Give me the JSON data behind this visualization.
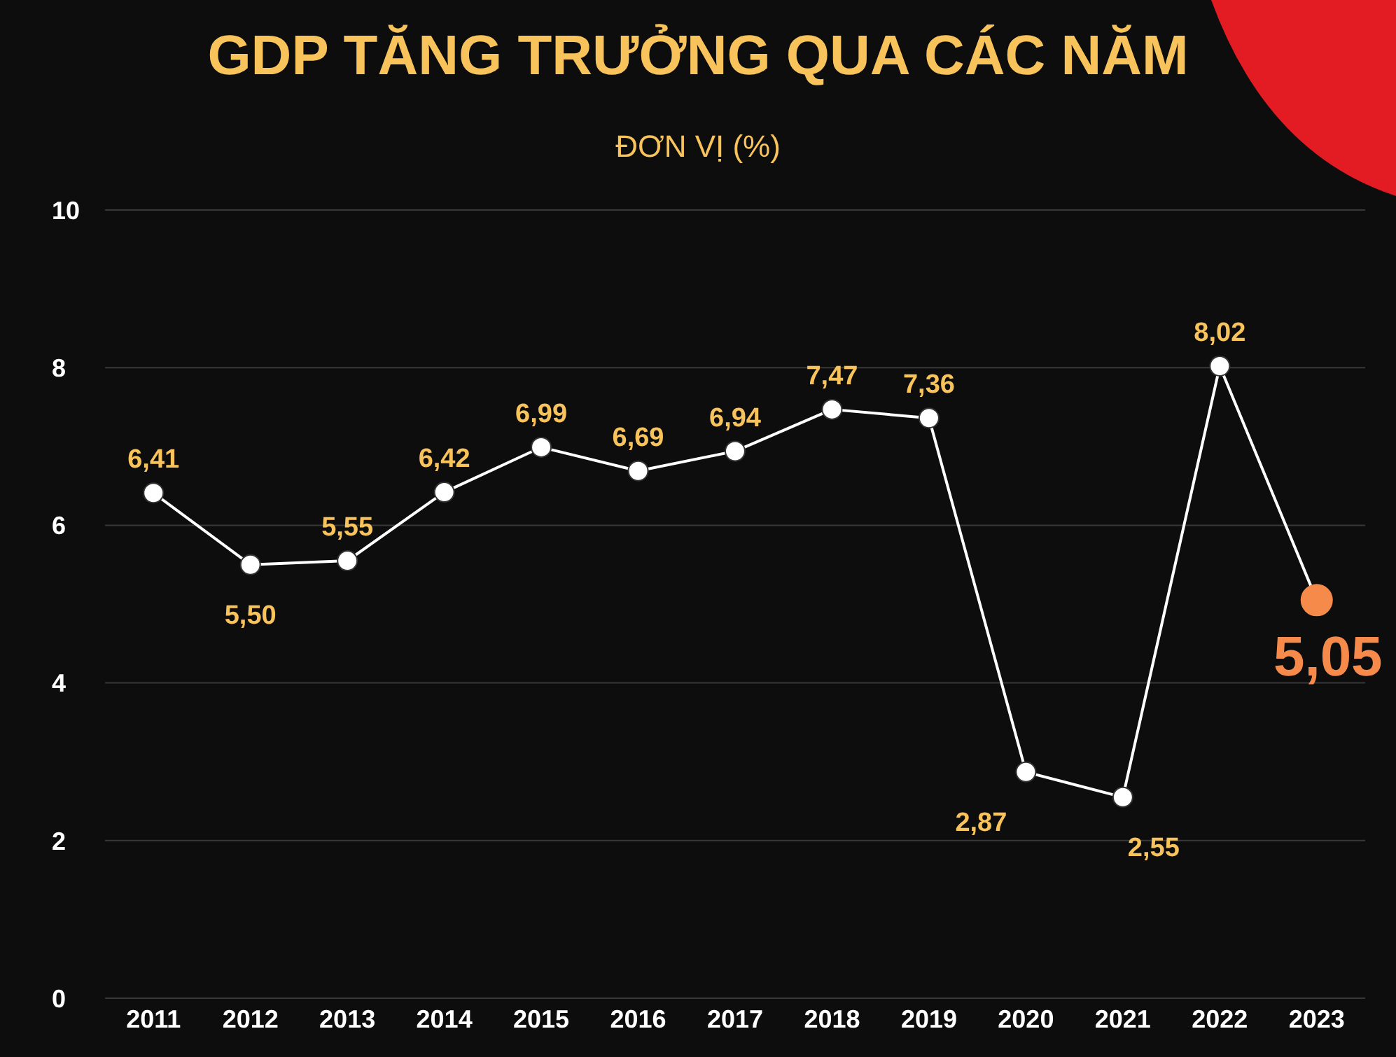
{
  "chart_data": {
    "type": "line",
    "title": "GDP TĂNG TRƯỞNG QUA CÁC NĂM",
    "subtitle": "ĐƠN VỊ (%)",
    "categories": [
      "2011",
      "2012",
      "2013",
      "2014",
      "2015",
      "2016",
      "2017",
      "2018",
      "2019",
      "2020",
      "2021",
      "2022",
      "2023"
    ],
    "series": [
      {
        "color": "#ffffff",
        "colors": [
          "#ffffff",
          "#ffffff",
          "#ffffff",
          "#ffffff",
          "#ffffff",
          "#ffffff",
          "#ffffff",
          "#ffffff",
          "#ffffff",
          "#ffffff",
          "#ffffff",
          "#ffffff",
          "#f58a4b"
        ],
        "values": [
          6.41,
          5.5,
          5.55,
          6.42,
          6.99,
          6.69,
          6.94,
          7.47,
          7.36,
          2.87,
          2.55,
          8.02,
          5.05
        ],
        "value_labels": [
          "6,41",
          "5,50",
          "5,55",
          "6,42",
          "6,99",
          "6,69",
          "6,94",
          "7,47",
          "7,36",
          "2,87",
          "2,55",
          "8,02",
          "5,05"
        ]
      }
    ],
    "ylim": [
      0,
      10
    ],
    "yticks": [
      0,
      2,
      4,
      6,
      8,
      10
    ],
    "grid": "y",
    "marker": "circle",
    "line_style": "solid"
  }
}
